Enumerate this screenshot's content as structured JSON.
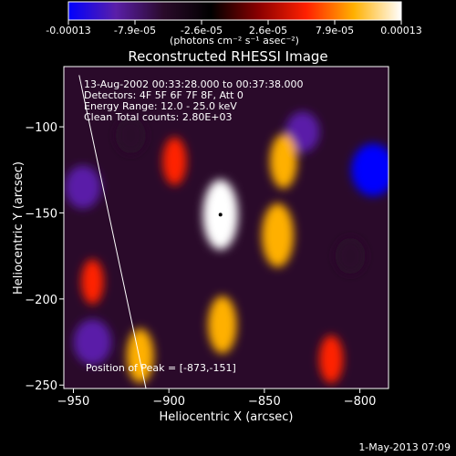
{
  "chart_data": {
    "type": "heatmap",
    "title": "Reconstructed RHESSI Image",
    "xlabel": "Heliocentric X (arcsec)",
    "ylabel": "Heliocentric Y (arcsec)",
    "xlim": [
      -955,
      -785
    ],
    "ylim": [
      -252,
      -65
    ],
    "xticks": [
      -950,
      -900,
      -850,
      -800
    ],
    "yticks": [
      -100,
      -150,
      -200,
      -250
    ],
    "colorbar": {
      "ticks": [
        "-0.00013",
        "-7.9e-05",
        "-2.6e-05",
        "2.6e-05",
        "7.9e-05",
        "0.00013"
      ],
      "unit_label": "(photons cm⁻² s⁻¹ asec⁻²)",
      "range": [
        -0.00013,
        0.00013
      ],
      "colormap": [
        "#0000ff",
        "#5a1fa8",
        "#2a0a2a",
        "#000000",
        "#8a0000",
        "#ff2000",
        "#ffb000",
        "#ffffff"
      ]
    },
    "annotations": [
      "13-Aug-2002 00:33:28.000 to 00:37:38.000",
      "Detectors: 4F 5F 6F 7F 8F, Att 0",
      "Energy Range: 12.0 - 25.0 keV",
      "Clean    Total counts: 2.80E+03"
    ],
    "peak_label": "Position of Peak = [-873,-151]",
    "peak": [
      -873,
      -151
    ],
    "bright_sources": [
      {
        "x": -873,
        "y": -151,
        "value": 0.00013
      },
      {
        "x": -872,
        "y": -215,
        "value": 9e-05
      },
      {
        "x": -843,
        "y": -163,
        "value": 0.00011
      },
      {
        "x": -840,
        "y": -120,
        "value": 8e-05
      },
      {
        "x": -915,
        "y": -233,
        "value": 8e-05
      },
      {
        "x": -897,
        "y": -120,
        "value": 6e-05
      },
      {
        "x": -815,
        "y": -235,
        "value": 6e-05
      },
      {
        "x": -940,
        "y": -190,
        "value": 5e-05
      }
    ],
    "dark_sources": [
      {
        "x": -793,
        "y": -125,
        "value": -0.00013
      },
      {
        "x": -830,
        "y": -103,
        "value": -8e-05
      },
      {
        "x": -945,
        "y": -135,
        "value": -9e-05
      },
      {
        "x": -940,
        "y": -225,
        "value": -0.0001
      },
      {
        "x": -920,
        "y": -105,
        "value": -6e-05
      },
      {
        "x": -805,
        "y": -175,
        "value": -6e-05
      }
    ],
    "limb_line": [
      [
        -947,
        -70
      ],
      [
        -912,
        -252
      ]
    ]
  },
  "footer": {
    "timestamp": "1-May-2013 07:09"
  }
}
